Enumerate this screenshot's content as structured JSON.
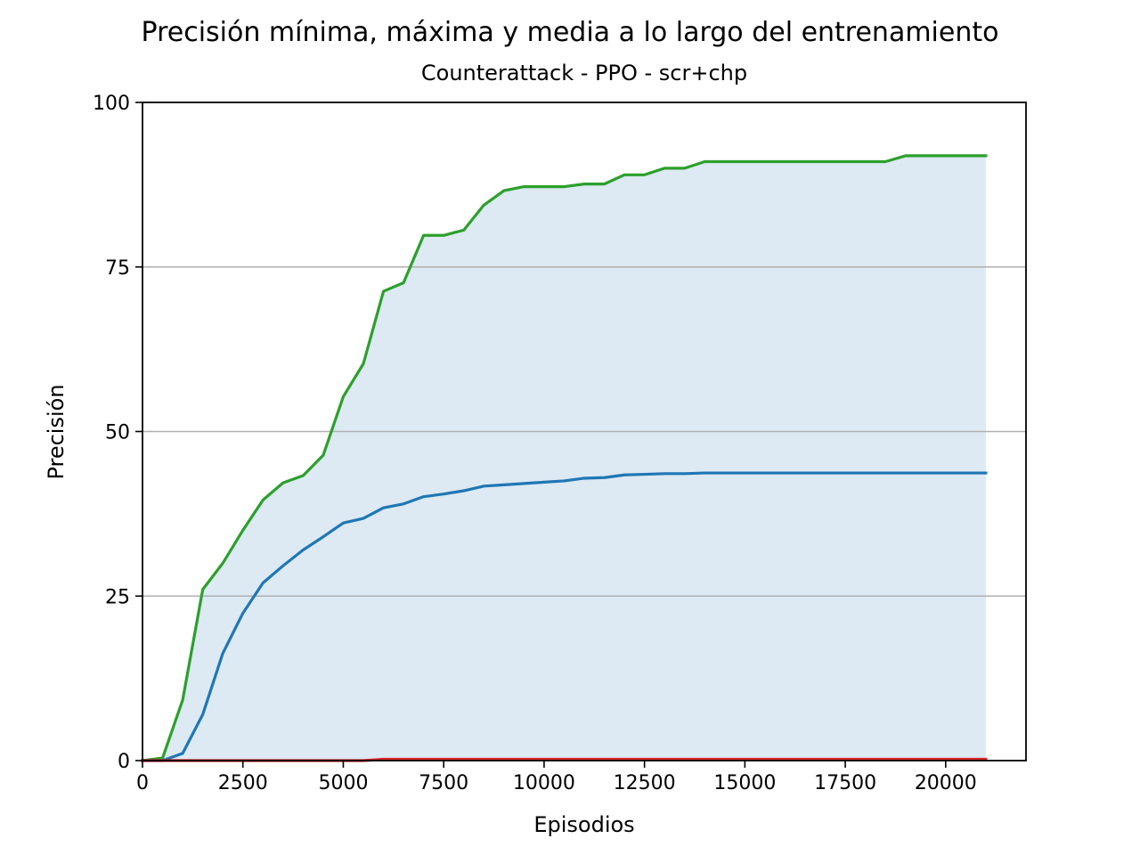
{
  "chart_data": {
    "type": "line",
    "title": "Precisión mínima, máxima y media a lo largo del entrenamiento",
    "subtitle": "Counterattack - PPO - scr+chp",
    "xlabel": "Episodios",
    "ylabel": "Precisión",
    "xlim": [
      0,
      22000
    ],
    "ylim": [
      0,
      100
    ],
    "xticks": [
      0,
      2500,
      5000,
      7500,
      10000,
      12500,
      15000,
      17500,
      20000
    ],
    "yticks": [
      0,
      25,
      50,
      75,
      100
    ],
    "grid": "horizontal",
    "legend": "none",
    "x": [
      0,
      500,
      1000,
      1500,
      2000,
      2500,
      3000,
      3500,
      4000,
      4500,
      5000,
      5500,
      6000,
      6500,
      7000,
      7500,
      8000,
      8500,
      9000,
      9500,
      10000,
      10500,
      11000,
      11500,
      12000,
      12500,
      13000,
      13500,
      14000,
      14500,
      15000,
      15500,
      16000,
      16500,
      17000,
      17500,
      18000,
      18500,
      19000,
      19500,
      20000,
      20500,
      21000
    ],
    "series": [
      {
        "role": "max",
        "color": "#2ca02c",
        "values": [
          0,
          0.4,
          9.2,
          26,
          30,
          35,
          39.6,
          42.2,
          43.3,
          46.4,
          55.3,
          60.3,
          71.3,
          72.6,
          79.8,
          79.8,
          80.6,
          84.4,
          86.6,
          87.2,
          87.2,
          87.2,
          87.6,
          87.6,
          89,
          89,
          90,
          90,
          91,
          91,
          91,
          91,
          91,
          91,
          91,
          91,
          91,
          91,
          91.9,
          91.9,
          91.9,
          91.9,
          91.9
        ]
      },
      {
        "role": "mean",
        "color": "#1f77b4",
        "values": [
          0,
          0,
          1.1,
          7,
          16.3,
          22.4,
          27,
          29.6,
          32,
          34,
          36.1,
          36.8,
          38.4,
          39,
          40.1,
          40.5,
          41,
          41.7,
          41.9,
          42.1,
          42.3,
          42.5,
          42.9,
          43,
          43.4,
          43.5,
          43.6,
          43.6,
          43.7,
          43.7,
          43.7,
          43.7,
          43.7,
          43.7,
          43.7,
          43.7,
          43.7,
          43.7,
          43.7,
          43.7,
          43.7,
          43.7,
          43.7
        ]
      },
      {
        "role": "min",
        "color": "#d62728",
        "values": [
          0,
          0,
          0,
          0,
          0,
          0,
          0,
          0,
          0,
          0,
          0,
          0,
          0.2,
          0.2,
          0.2,
          0.2,
          0.2,
          0.2,
          0.2,
          0.2,
          0.2,
          0.2,
          0.2,
          0.2,
          0.2,
          0.2,
          0.2,
          0.2,
          0.2,
          0.2,
          0.2,
          0.2,
          0.2,
          0.2,
          0.2,
          0.2,
          0.2,
          0.2,
          0.2,
          0.2,
          0.2,
          0.2,
          0.2
        ]
      }
    ],
    "fill_between": {
      "lower": "min",
      "upper": "max",
      "color": "#dde9f3"
    }
  }
}
